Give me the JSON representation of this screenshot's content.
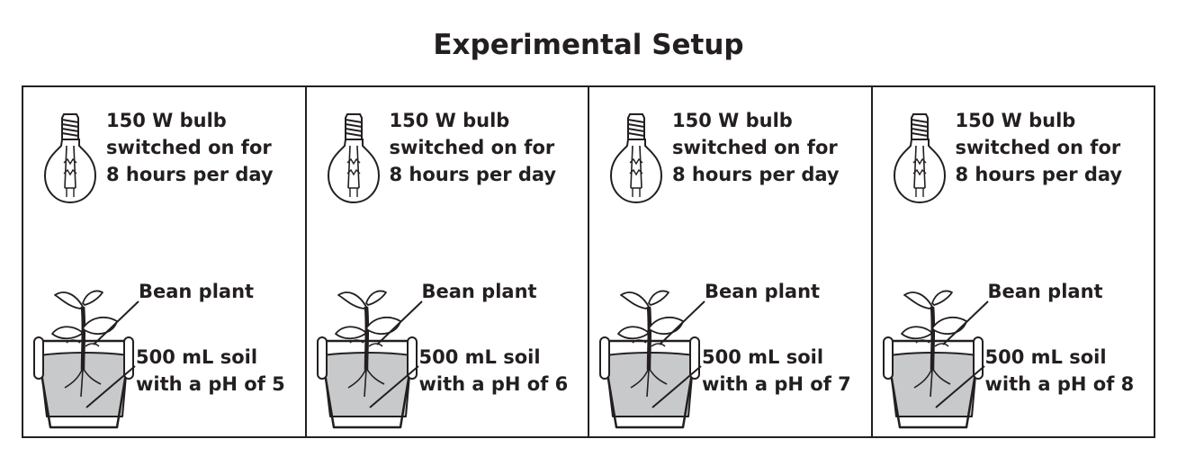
{
  "title": "Experimental Setup",
  "panels": [
    {
      "bulb_text": "150 W bulb\nswitched on for\n8 hours per day",
      "plant_label": "Bean plant",
      "soil_label": "500 mL soil\nwith a pH of 5"
    },
    {
      "bulb_text": "150 W bulb\nswitched on for\n8 hours per day",
      "plant_label": "Bean plant",
      "soil_label": "500 mL soil\nwith a pH of 6"
    },
    {
      "bulb_text": "150 W bulb\nswitched on for\n8 hours per day",
      "plant_label": "Bean plant",
      "soil_label": "500 mL soil\nwith a pH of 7"
    },
    {
      "bulb_text": "150 W bulb\nswitched on for\n8 hours per day",
      "plant_label": "Bean plant",
      "soil_label": "500 mL soil\nwith a pH of 8"
    }
  ],
  "colors": {
    "ink": "#231f20",
    "soil": "#c8c9ca",
    "background": "#ffffff"
  },
  "icons": [
    "light-bulb-icon",
    "potted-bean-plant-icon"
  ]
}
